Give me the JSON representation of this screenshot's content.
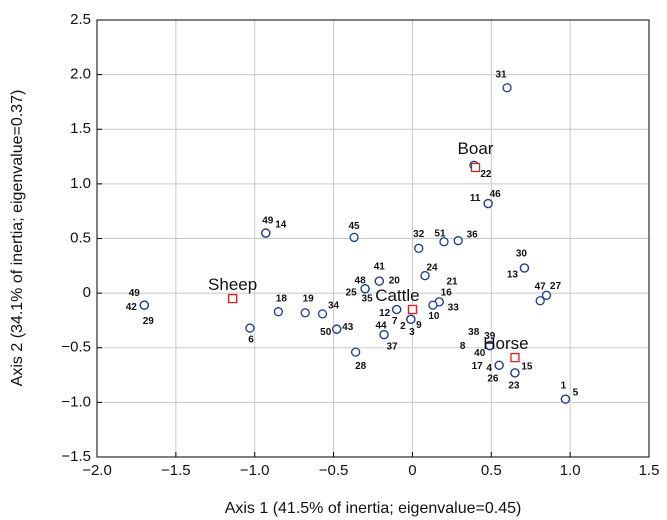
{
  "chart_data": {
    "type": "scatter",
    "xlabel": "Axis 1 (41.5% of inertia; eigenvalue=0.45)",
    "ylabel": "Axis 2 (34.1% of inertia; eigenvalue=0.37)",
    "xlim": [
      -2.0,
      1.5
    ],
    "ylim": [
      -1.5,
      2.5
    ],
    "xticks": [
      {
        "value": -2.0,
        "label": "−2.0"
      },
      {
        "value": -1.5,
        "label": "−1.5"
      },
      {
        "value": -1.0,
        "label": "−1.0"
      },
      {
        "value": -0.5,
        "label": "−0.5"
      },
      0,
      0.5,
      {
        "value": 1.0,
        "label": "1.0"
      },
      1.5
    ],
    "yticks": [
      {
        "value": -1.5,
        "label": "−1.5"
      },
      {
        "value": -1.0,
        "label": "−1.0"
      },
      {
        "value": -0.5,
        "label": "−0.5"
      },
      0,
      0.5,
      {
        "value": 1.0,
        "label": "1.0"
      },
      1.5,
      {
        "value": 2.0,
        "label": "2.0"
      },
      2.5
    ],
    "grid": true,
    "series": [
      {
        "color": "#1f3a8a",
        "marker": "circle",
        "labels": [
          "31",
          "22",
          "11",
          "46",
          "49",
          "14",
          "45",
          "32",
          "51",
          "36",
          "30",
          "13",
          "24",
          "21",
          "41",
          "20",
          "48",
          "25",
          "35",
          "47",
          "27",
          "16",
          "33",
          "10",
          "12",
          "7",
          "2",
          "9",
          "3",
          "44",
          "37",
          "50",
          "43",
          "34",
          "19",
          "18",
          "6",
          "49",
          "42",
          "29",
          "28",
          "38",
          "39",
          "8",
          "40",
          "17",
          "4",
          "26",
          "15",
          "23",
          "1",
          "5"
        ],
        "x": [
          0.6,
          0.39,
          0.48,
          0.48,
          -0.93,
          -0.93,
          -0.37,
          0.04,
          0.2,
          0.29,
          0.71,
          0.71,
          0.08,
          0.08,
          -0.21,
          -0.21,
          -0.3,
          -0.3,
          -0.3,
          0.81,
          0.85,
          0.17,
          0.17,
          0.13,
          -0.1,
          -0.1,
          -0.01,
          -0.01,
          -0.01,
          -0.18,
          -0.18,
          -0.48,
          -0.48,
          -0.57,
          -0.68,
          -0.85,
          -1.03,
          -1.7,
          -1.7,
          -1.7,
          -0.36,
          0.49,
          0.49,
          0.49,
          0.49,
          0.55,
          0.55,
          0.65,
          0.65,
          0.65,
          0.97,
          0.97
        ],
        "y": [
          1.88,
          1.17,
          0.82,
          0.82,
          0.55,
          0.55,
          0.51,
          0.41,
          0.47,
          0.48,
          0.23,
          0.23,
          0.16,
          0.16,
          0.11,
          0.11,
          0.04,
          0.04,
          0.04,
          -0.07,
          -0.02,
          -0.08,
          -0.08,
          -0.11,
          -0.15,
          -0.15,
          -0.24,
          -0.24,
          -0.24,
          -0.38,
          -0.38,
          -0.33,
          -0.33,
          -0.19,
          -0.18,
          -0.17,
          -0.32,
          -0.11,
          -0.11,
          -0.11,
          -0.54,
          -0.48,
          -0.48,
          -0.48,
          -0.48,
          -0.66,
          -0.66,
          -0.73,
          -0.73,
          -0.73,
          -0.97,
          -0.97
        ]
      },
      {
        "color": "#d62020",
        "marker": "square",
        "labels": [
          "Sheep",
          "Cattle",
          "Boar",
          "Horse"
        ],
        "x": [
          -1.14,
          0.0,
          0.4,
          0.65
        ],
        "y": [
          -0.05,
          -0.15,
          1.15,
          -0.59
        ]
      }
    ]
  }
}
